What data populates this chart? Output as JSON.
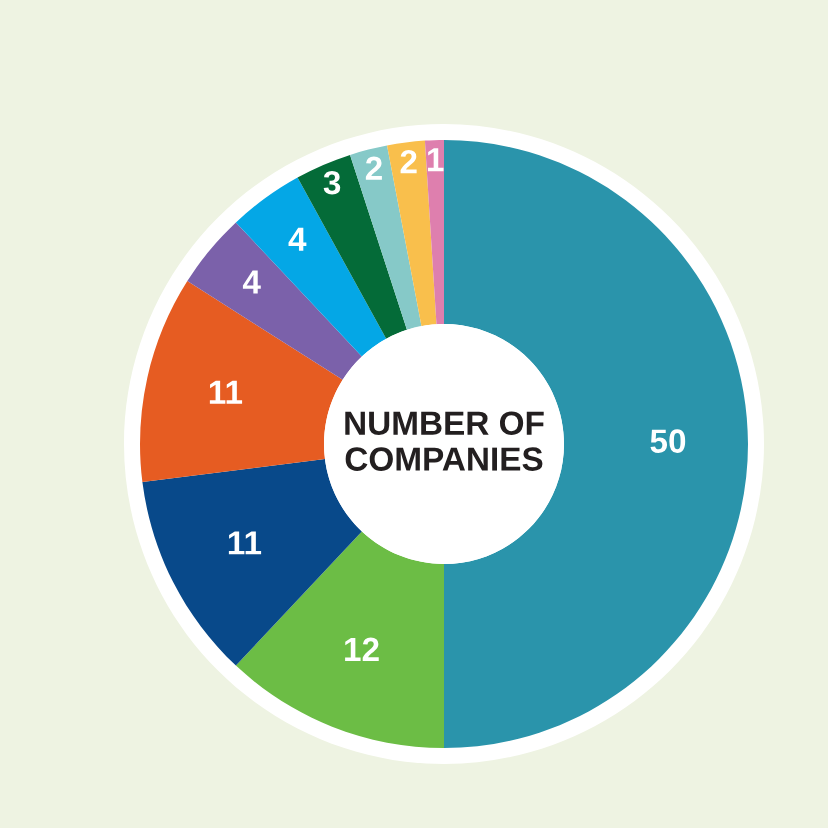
{
  "chart_data": {
    "type": "donut",
    "title": "NUMBER OF\nCOMPANIES",
    "categories": [
      null,
      null,
      null,
      null,
      null,
      null,
      null,
      null,
      null,
      null
    ],
    "values": [
      50,
      12,
      11,
      11,
      4,
      4,
      3,
      2,
      2,
      1
    ],
    "colors": [
      "#2a94ab",
      "#6cbd45",
      "#08498a",
      "#e65c22",
      "#7b61aa",
      "#04a7e6",
      "#046b38",
      "#86c9c8",
      "#f9bf4c",
      "#de7fae"
    ],
    "data_labels": true,
    "legend": false
  }
}
